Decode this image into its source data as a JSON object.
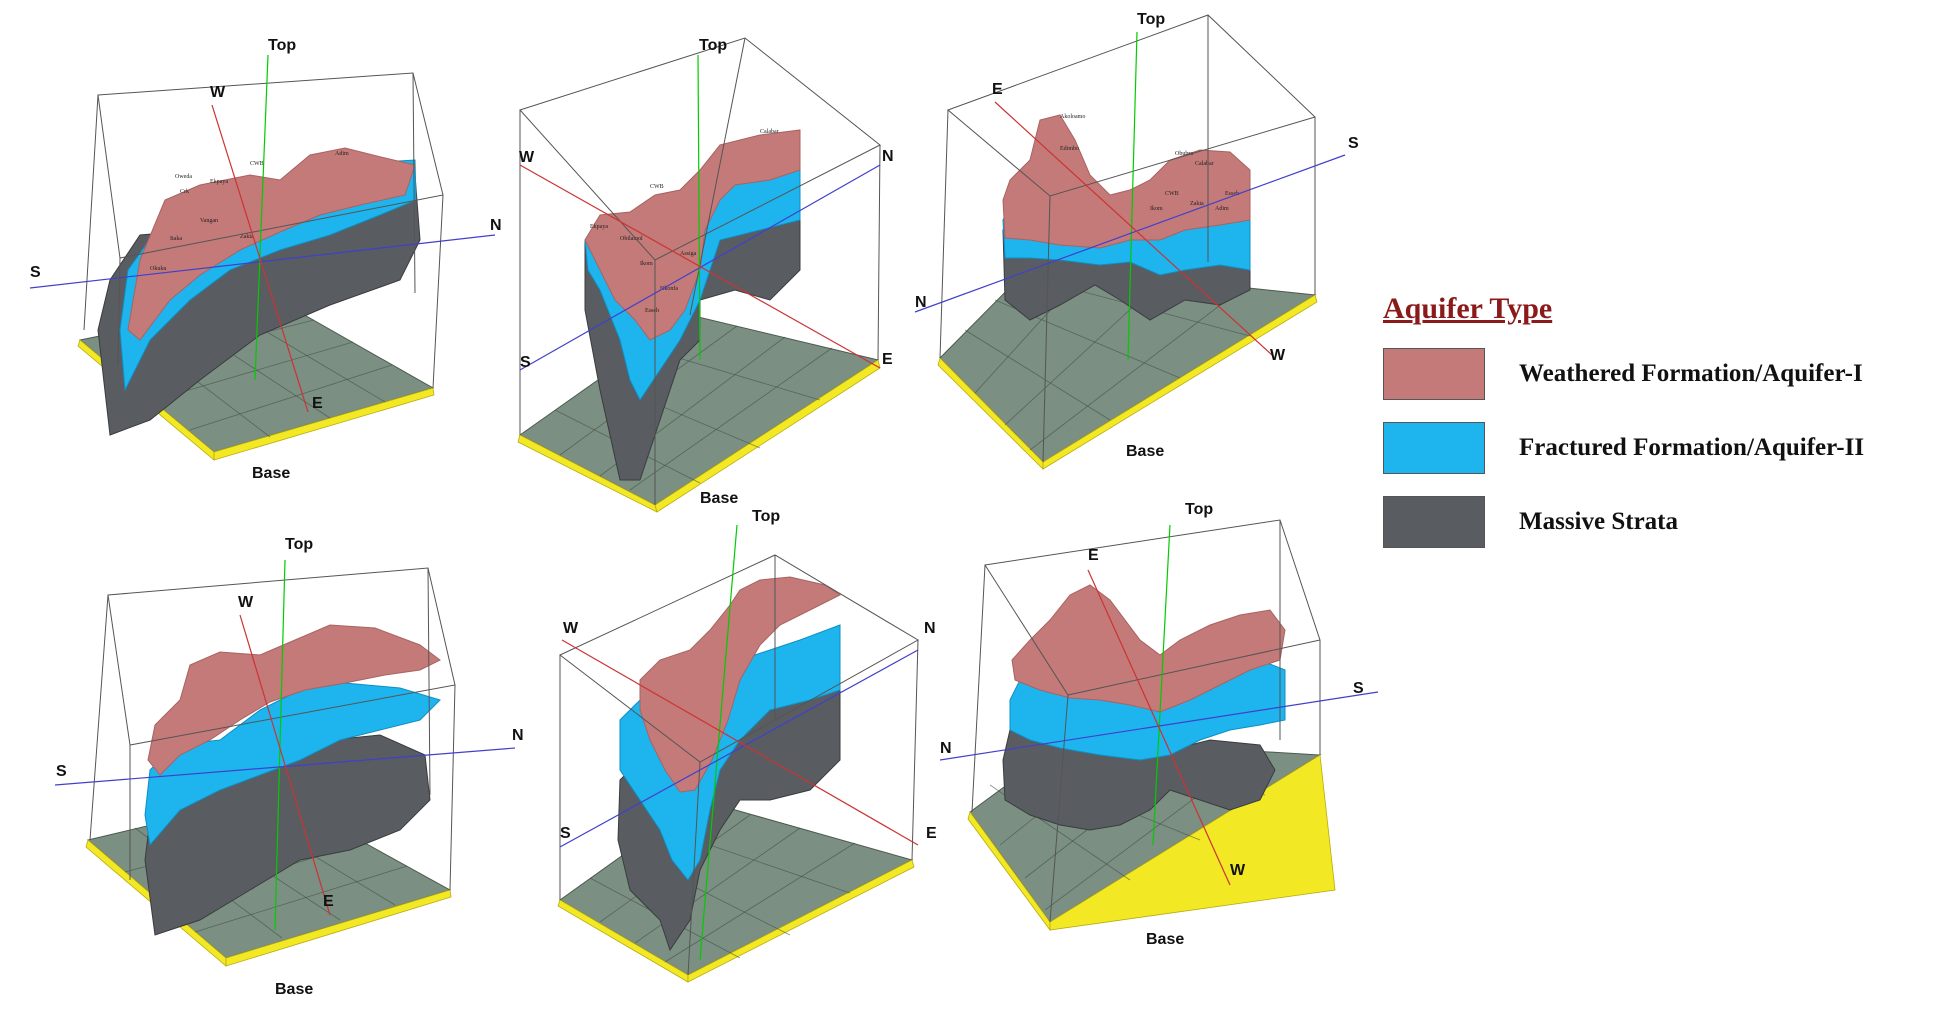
{
  "colors": {
    "weathered": "#c47a78",
    "weathered_dark": "#a86361",
    "fractured": "#1eb4ee",
    "fractured_dark": "#0f8fc4",
    "massive": "#595c60",
    "massive_dark": "#3a3c3f",
    "base": "#7b8f82",
    "rim": "#f3e824",
    "box": "#555555",
    "vertical_axis": "#00cc00",
    "ns_axis": "#4040cc",
    "we_axis": "#cc3333"
  },
  "axis_labels": {
    "top": "Top",
    "base": "Base"
  },
  "legend": {
    "title": "Aquifer Type",
    "items": [
      {
        "label": "Weathered Formation/Aquifer-I",
        "color": "#c47a78"
      },
      {
        "label": "Fractured Formation/Aquifer-II",
        "color": "#1eb4ee"
      },
      {
        "label": "Massive Strata",
        "color": "#595c60"
      }
    ]
  },
  "panels": [
    {
      "id": "panel-top-1",
      "labels": {
        "top": "Top",
        "base": "Base",
        "d1": "S",
        "d2": "N",
        "d3": "W",
        "d4": "E"
      }
    },
    {
      "id": "panel-top-2",
      "labels": {
        "top": "Top",
        "base": "Base",
        "d1": "S",
        "d2": "N",
        "d3": "W",
        "d4": "E"
      }
    },
    {
      "id": "panel-top-3",
      "labels": {
        "top": "Top",
        "base": "Base",
        "d1": "N",
        "d2": "S",
        "d3": "E",
        "d4": "W"
      }
    },
    {
      "id": "panel-bottom-1",
      "labels": {
        "top": "Top",
        "base": "Base",
        "d1": "S",
        "d2": "N",
        "d3": "W",
        "d4": "E"
      }
    },
    {
      "id": "panel-bottom-2",
      "labels": {
        "top": "Top",
        "base": "Base",
        "d1": "S",
        "d2": "N",
        "d3": "W",
        "d4": "E"
      }
    },
    {
      "id": "panel-bottom-3",
      "labels": {
        "top": "Top",
        "base": "Base",
        "d1": "N",
        "d2": "S",
        "d3": "E",
        "d4": "W"
      }
    }
  ],
  "place_names": [
    "Oweda",
    "Ekpaya",
    "Crk",
    "Vangan",
    "Itaka",
    "Obilamol",
    "Calabar",
    "CWB",
    "Zakia",
    "Assiga",
    "Ikom",
    "Nkonfa",
    "Akoloamo",
    "Edimbo",
    "Obubra",
    "Esseh",
    "Okuku",
    "Adim"
  ]
}
